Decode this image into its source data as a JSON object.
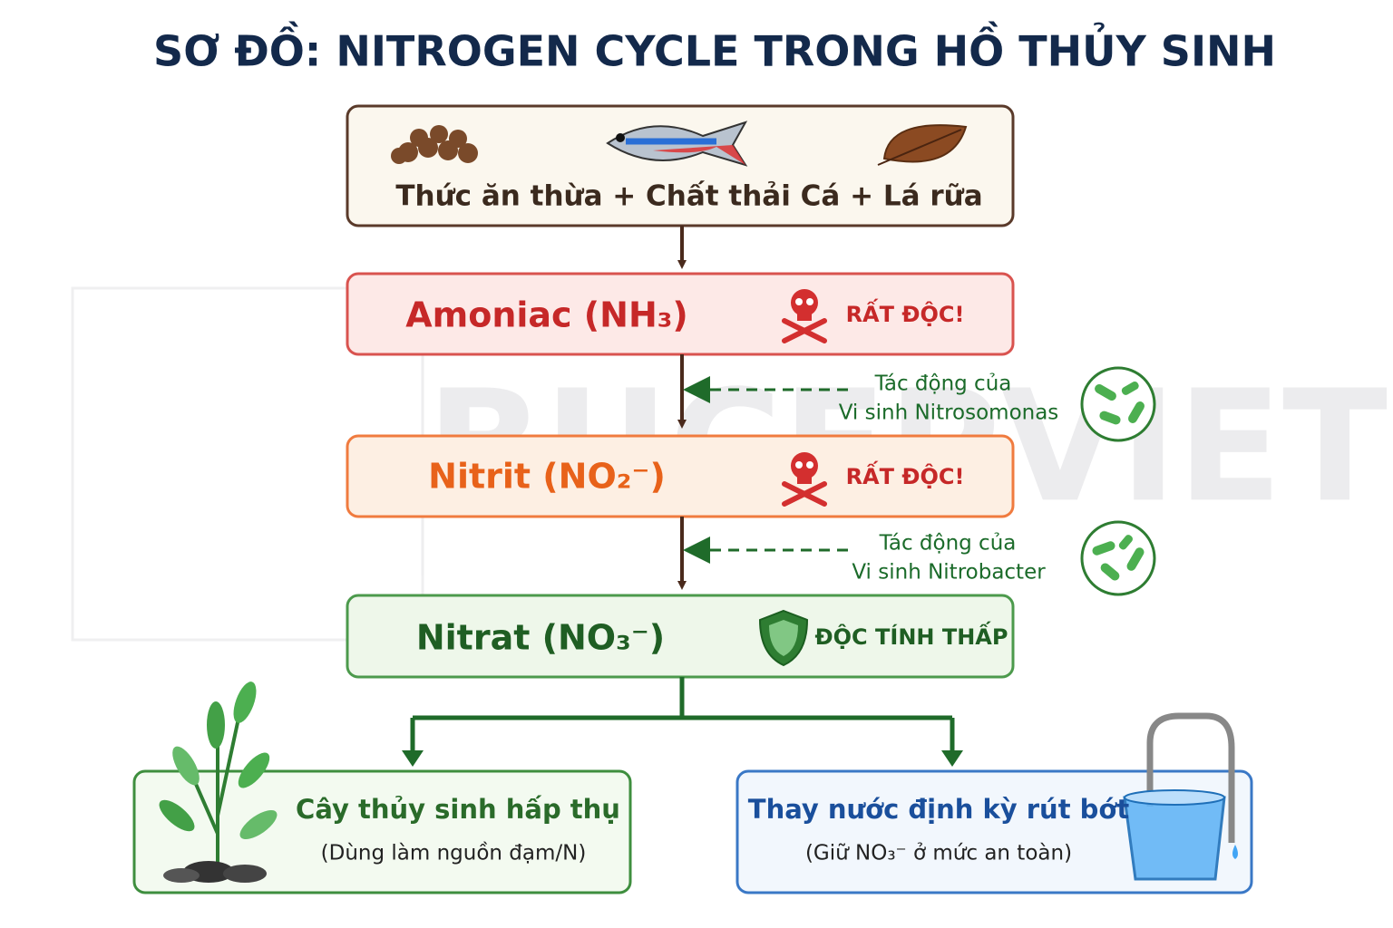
{
  "title": "SƠ ĐỒ: NITROGEN CYCLE TRONG HỒ THỦY SINH",
  "watermark": "BUCEPVIET",
  "source": {
    "label": "Thức ăn thừa + Chất thải Cá + Lá rữa"
  },
  "steps": [
    {
      "label": "Amoniac (NH₃)",
      "warning": "RẤT ĐỘC!"
    },
    {
      "label": "Nitrit (NO₂⁻)",
      "warning": "RẤT ĐỘC!"
    },
    {
      "label": "Nitrat (NO₃⁻)",
      "warning": "ĐỘC TÍNH THẤP"
    }
  ],
  "bacteria": [
    {
      "line1": "Tác động của",
      "line2": "Vi sinh Nitrosomonas"
    },
    {
      "line1": "Tác động của",
      "line2": "Vi sinh Nitrobacter"
    }
  ],
  "outcomes": [
    {
      "title": "Cây thủy sinh hấp thụ",
      "subtitle": "(Dùng làm nguồn đạm/N)"
    },
    {
      "title": "Thay nước định kỳ rút bớt",
      "subtitle": "(Giữ NO₃⁻ ở mức an toàn)"
    }
  ]
}
